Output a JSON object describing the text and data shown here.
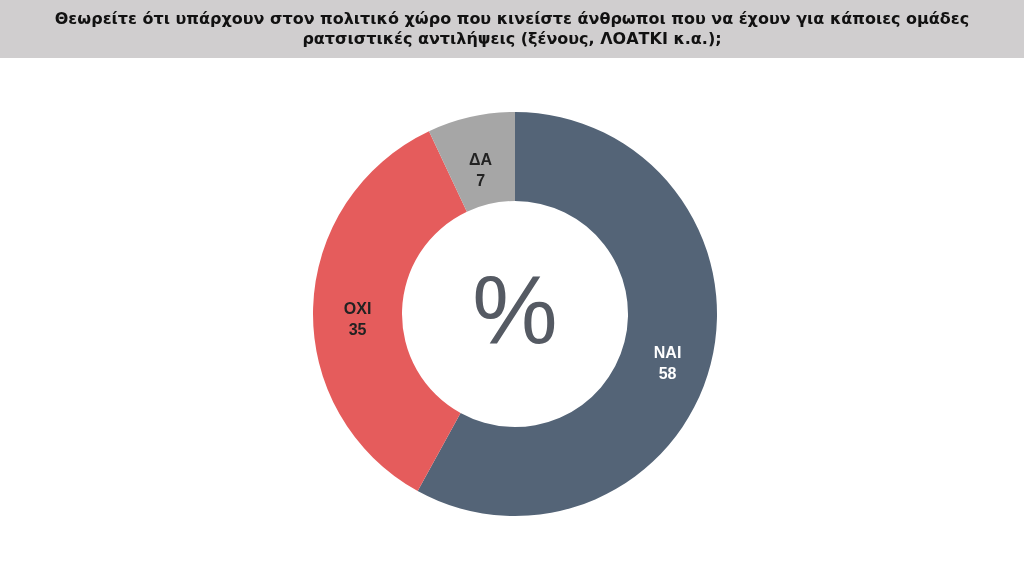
{
  "chart_data": {
    "type": "donut",
    "title": "Θεωρείτε ότι υπάρχουν στον πολιτικό χώρο που κινείστε άνθρωποι που να έχουν για κάποιες ομάδες ρατσιστικές αντιλήψεις (ξένους, ΛΟΑΤΚΙ κ.α.);",
    "categories": [
      "ΝΑΙ",
      "ΟΧΙ",
      "ΔΑ"
    ],
    "values": [
      58,
      35,
      7
    ],
    "colors": [
      "#546477",
      "#e55c5c",
      "#a6a6a6"
    ],
    "data_labels": true,
    "annotations": [
      "%"
    ]
  }
}
